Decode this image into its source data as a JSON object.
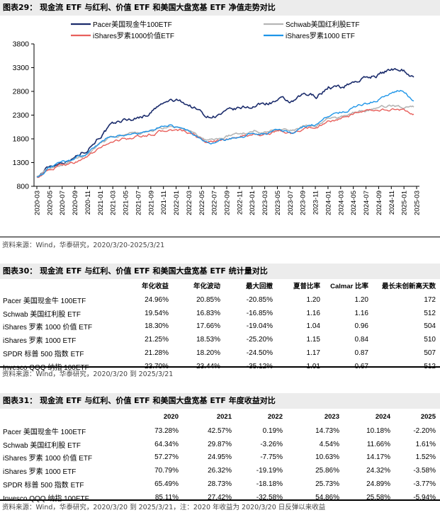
{
  "figure29": {
    "title": "图表29：  现金流 ETF 与红利、价值 ETF 和美国大盘宽基 ETF 净值走势对比",
    "source": "资料来源：Wind，华泰研究，2020/3/20-2025/3/21"
  },
  "chart_data": {
    "type": "line",
    "title": "",
    "xlabel": "",
    "ylabel": "",
    "ylim": [
      800,
      3800
    ],
    "yticks": [
      800,
      1300,
      1800,
      2300,
      2800,
      3300,
      3800
    ],
    "grid": false,
    "legend_position": "top",
    "x_tick_labels": [
      "2020-03",
      "2020-05",
      "2020-07",
      "2020-09",
      "2020-11",
      "2021-01",
      "2021-03",
      "2021-05",
      "2021-07",
      "2021-09",
      "2021-11",
      "2022-01",
      "2022-03",
      "2022-05",
      "2022-07",
      "2022-09",
      "2022-11",
      "2023-01",
      "2023-03",
      "2023-05",
      "2023-07",
      "2023-09",
      "2023-11",
      "2024-01",
      "2024-03",
      "2024-05",
      "2024-07",
      "2024-09",
      "2024-11",
      "2025-01",
      "2025-03"
    ],
    "series": [
      {
        "name": "Pacer美国现金牛100ETF",
        "color": "#1a2b6b",
        "width": 1.6,
        "values": [
          1000,
          1210,
          1320,
          1400,
          1560,
          1820,
          2050,
          2180,
          2230,
          2300,
          2480,
          2600,
          2580,
          2450,
          2280,
          2310,
          2380,
          2450,
          2500,
          2560,
          2620,
          2550,
          2720,
          2700,
          2900,
          2880,
          3000,
          3080,
          3150,
          3250,
          3300,
          3100
        ]
      },
      {
        "name": "Schwab美国红利股ETF",
        "color": "#b5b5b5",
        "width": 1.6,
        "values": [
          1000,
          1160,
          1260,
          1330,
          1450,
          1640,
          1820,
          1860,
          1900,
          1920,
          2000,
          2030,
          2020,
          1880,
          1760,
          1800,
          1880,
          1920,
          1980,
          1960,
          2040,
          1960,
          2060,
          2080,
          2220,
          2260,
          2350,
          2400,
          2430,
          2500,
          2480,
          2470
        ]
      },
      {
        "name": "iShares罗素1000价值ETF",
        "color": "#e8605c",
        "width": 1.4,
        "values": [
          1000,
          1130,
          1240,
          1300,
          1400,
          1560,
          1730,
          1790,
          1840,
          1860,
          1940,
          1980,
          1960,
          1850,
          1720,
          1760,
          1830,
          1860,
          1900,
          1890,
          1970,
          1910,
          2010,
          2050,
          2180,
          2210,
          2300,
          2370,
          2400,
          2420,
          2400,
          2320
        ]
      },
      {
        "name": "iShares罗素1000 ETF",
        "color": "#1e95e8",
        "width": 1.4,
        "values": [
          1000,
          1180,
          1290,
          1370,
          1490,
          1680,
          1860,
          1880,
          1910,
          1930,
          2060,
          2100,
          2010,
          1880,
          1700,
          1740,
          1810,
          1860,
          1930,
          1920,
          2010,
          1940,
          2060,
          2100,
          2300,
          2370,
          2450,
          2560,
          2620,
          2760,
          2820,
          2600
        ]
      }
    ]
  },
  "figure30": {
    "title": "图表30：  现金流 ETF 与红利、价值 ETF 和美国大盘宽基 ETF 统计量对比",
    "source": "资料来源：Wind，华泰研究，2020/3/20 到 2025/3/21",
    "headers": [
      "年化收益",
      "年化波动",
      "最大回撤",
      "夏普比率",
      "Calmar 比率",
      "最长未创新高天数"
    ],
    "rows": [
      [
        "Pacer 美国现金牛 100ETF",
        "24.96%",
        "20.85%",
        "-20.85%",
        "1.20",
        "1.20",
        "172"
      ],
      [
        "Schwab 美国红利股 ETF",
        "19.54%",
        "16.83%",
        "-16.85%",
        "1.16",
        "1.16",
        "512"
      ],
      [
        "iShares 罗素 1000 价值 ETF",
        "18.30%",
        "17.66%",
        "-19.04%",
        "1.04",
        "0.96",
        "504"
      ],
      [
        "iShares 罗素 1000 ETF",
        "21.25%",
        "18.53%",
        "-25.20%",
        "1.15",
        "0.84",
        "510"
      ],
      [
        "SPDR 标普 500 指数 ETF",
        "21.28%",
        "18.20%",
        "-24.50%",
        "1.17",
        "0.87",
        "507"
      ],
      [
        "Invesco QQQ 纳指 100ETF",
        "23.70%",
        "23.44%",
        "-35.12%",
        "1.01",
        "0.67",
        "512"
      ]
    ]
  },
  "figure31": {
    "title": "图表31：  现金流 ETF 与红利、价值 ETF 和美国大盘宽基 ETF 年度收益对比",
    "source": "资料来源：Wind，华泰研究，2020/3/20 到 2025/3/21，注：2020 年收益为 2020/3/20 日反弹以来收益",
    "headers": [
      "2020",
      "2021",
      "2022",
      "2023",
      "2024",
      "2025"
    ],
    "rows": [
      [
        "Pacer 美国现金牛 100ETF",
        "73.28%",
        "42.57%",
        "0.19%",
        "14.73%",
        "10.18%",
        "-2.20%"
      ],
      [
        "Schwab 美国红利股 ETF",
        "64.34%",
        "29.87%",
        "-3.26%",
        "4.54%",
        "11.66%",
        "1.61%"
      ],
      [
        "iShares 罗素 1000 价值 ETF",
        "57.27%",
        "24.95%",
        "-7.75%",
        "10.63%",
        "14.17%",
        "1.52%"
      ],
      [
        "iShares 罗素 1000 ETF",
        "70.79%",
        "26.32%",
        "-19.19%",
        "25.86%",
        "24.32%",
        "-3.58%"
      ],
      [
        "SPDR 标普 500 指数 ETF",
        "65.49%",
        "28.73%",
        "-18.18%",
        "25.73%",
        "24.89%",
        "-3.77%"
      ],
      [
        "Invesco QQQ 纳指 100ETF",
        "85.11%",
        "27.42%",
        "-32.58%",
        "54.86%",
        "25.58%",
        "-5.94%"
      ]
    ]
  }
}
